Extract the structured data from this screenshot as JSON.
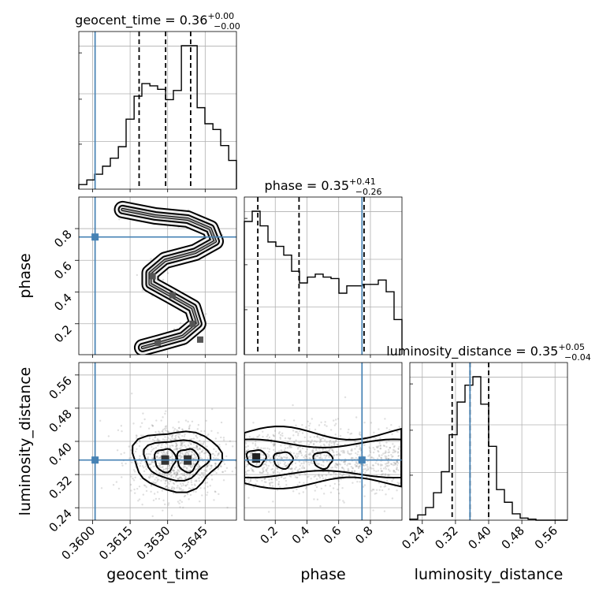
{
  "chart_data": {
    "type": "corner",
    "parameters": [
      "geocent_time",
      "phase",
      "luminosity_distance"
    ],
    "titles": {
      "geocent_time": {
        "label": "geocent_time",
        "median": "0.36",
        "plus": "+0.00",
        "minus": "−0.00"
      },
      "phase": {
        "label": "phase",
        "median": "0.35",
        "plus": "+0.41",
        "minus": "−0.26"
      },
      "luminosity_distance": {
        "label": "luminosity_distance",
        "median": "0.35",
        "plus": "+0.05",
        "minus": "−0.04"
      }
    },
    "truths": {
      "geocent_time": 0.3601,
      "phase": 0.747,
      "luminosity_distance": 0.355
    },
    "ranges": {
      "geocent_time": [
        0.35945,
        0.36575
      ],
      "phase": [
        0.005,
        0.999
      ],
      "luminosity_distance": [
        0.21,
        0.59
      ]
    },
    "tick_labels": {
      "geocent_time": [
        "0.3600",
        "0.3615",
        "0.3630",
        "0.3645"
      ],
      "phase": [
        "0.2",
        "0.4",
        "0.6",
        "0.8"
      ],
      "luminosity_distance": [
        "0.24",
        "0.32",
        "0.40",
        "0.48",
        "0.56"
      ]
    },
    "grid": true,
    "histograms": {
      "geocent_time": {
        "edges": [
          0.35945,
          0.35977,
          0.36008,
          0.3604,
          0.36071,
          0.36103,
          0.36134,
          0.36166,
          0.36197,
          0.36229,
          0.3626,
          0.36292,
          0.36323,
          0.36355,
          0.36386,
          0.36418,
          0.36449,
          0.36481,
          0.36512,
          0.36544,
          0.36575
        ],
        "counts": [
          0.4,
          0.8,
          1.3,
          2.0,
          2.7,
          3.7,
          6.1,
          8.1,
          9.2,
          9.0,
          8.7,
          7.8,
          8.6,
          12.5,
          12.5,
          7.1,
          5.7,
          5.2,
          3.8,
          2.5
        ],
        "quantiles": [
          0.36186,
          0.36292,
          0.36392
        ]
      },
      "phase": {
        "edges": [
          0.005,
          0.0547,
          0.1044,
          0.1541,
          0.2038,
          0.2535,
          0.3032,
          0.3529,
          0.4026,
          0.4523,
          0.502,
          0.5517,
          0.6014,
          0.651,
          0.7007,
          0.7504,
          0.8001,
          0.8498,
          0.8995,
          0.9492,
          0.999
        ],
        "counts": [
          9.1,
          9.8,
          8.8,
          7.7,
          7.4,
          6.8,
          5.7,
          4.9,
          5.3,
          5.5,
          5.3,
          5.2,
          4.2,
          4.7,
          4.7,
          4.8,
          4.8,
          5.1,
          4.3,
          2.4
        ],
        "quantiles": [
          0.09,
          0.35,
          0.76
        ]
      },
      "luminosity_distance": {
        "edges": [
          0.21,
          0.229,
          0.248,
          0.267,
          0.286,
          0.305,
          0.324,
          0.343,
          0.362,
          0.381,
          0.4,
          0.419,
          0.438,
          0.457,
          0.476,
          0.495,
          0.514,
          0.533,
          0.552,
          0.571,
          0.59
        ],
        "counts": [
          0.1,
          0.5,
          1.2,
          2.6,
          4.6,
          8.1,
          11.2,
          12.8,
          13.6,
          11.0,
          7.0,
          2.9,
          1.7,
          0.6,
          0.2,
          0.1,
          0.0,
          0.0,
          0.0,
          0.0
        ],
        "quantiles": [
          0.312,
          0.355,
          0.4
        ]
      }
    },
    "joint_2d": [
      {
        "x": "geocent_time",
        "y": "phase",
        "shape": "S-shaped ridge",
        "ridge": [
          [
            0.3612,
            0.92
          ],
          [
            0.3625,
            0.88
          ],
          [
            0.3638,
            0.86
          ],
          [
            0.3647,
            0.8
          ],
          [
            0.3649,
            0.72
          ],
          [
            0.3641,
            0.65
          ],
          [
            0.3629,
            0.6
          ],
          [
            0.3623,
            0.52
          ],
          [
            0.3623,
            0.45
          ],
          [
            0.3631,
            0.38
          ],
          [
            0.364,
            0.3
          ],
          [
            0.3642,
            0.2
          ],
          [
            0.3636,
            0.12
          ],
          [
            0.3627,
            0.08
          ],
          [
            0.362,
            0.05
          ]
        ]
      },
      {
        "x": "geocent_time",
        "y": "luminosity_distance",
        "centers": [
          [
            0.3629,
            0.355
          ],
          [
            0.3638,
            0.355
          ]
        ]
      },
      {
        "x": "phase",
        "y": "luminosity_distance",
        "centers": [
          [
            0.08,
            0.36
          ],
          [
            0.25,
            0.355
          ],
          [
            0.5,
            0.355
          ]
        ]
      }
    ]
  }
}
